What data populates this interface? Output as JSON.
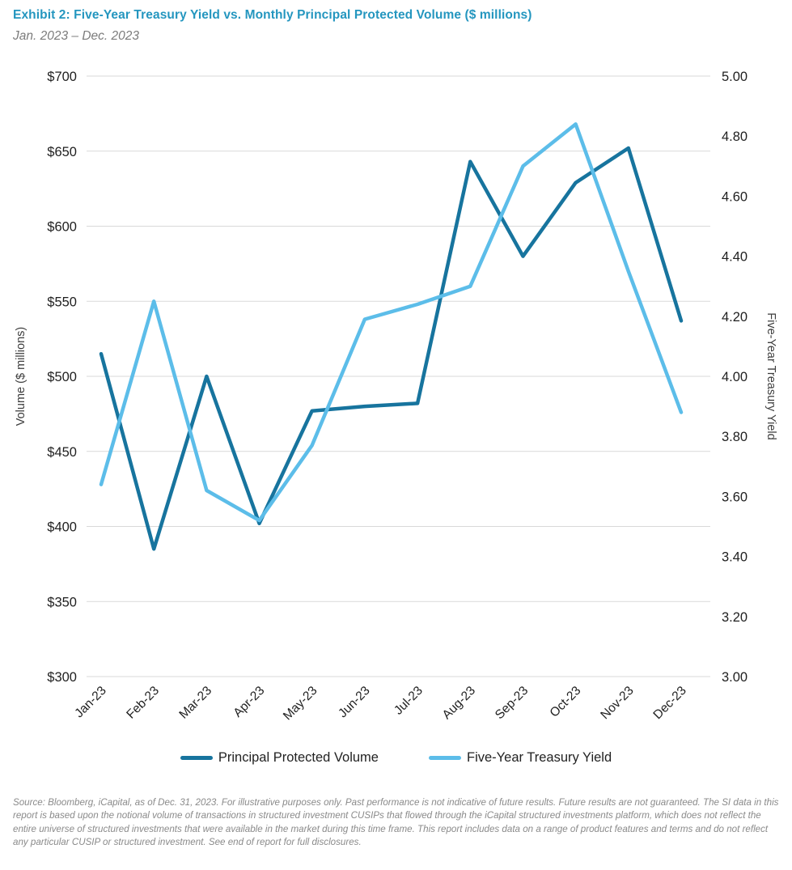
{
  "header": {
    "title": "Exhibit 2: Five-Year Treasury Yield vs. Monthly Principal Protected Volume ($ millions)",
    "subtitle": "Jan. 2023 – Dec. 2023"
  },
  "chart_data": {
    "type": "line",
    "categories": [
      "Jan-23",
      "Feb-23",
      "Mar-23",
      "Apr-23",
      "May-23",
      "Jun-23",
      "Jul-23",
      "Aug-23",
      "Sep-23",
      "Oct-23",
      "Nov-23",
      "Dec-23"
    ],
    "series": [
      {
        "name": "Principal Protected Volume",
        "axis": "left",
        "color": "#17749e",
        "values": [
          515,
          385,
          500,
          402,
          477,
          480,
          482,
          643,
          580,
          629,
          652,
          537
        ]
      },
      {
        "name": "Five-Year Treasury Yield",
        "axis": "right",
        "color": "#5cbde9",
        "values": [
          3.64,
          4.25,
          3.62,
          3.52,
          3.77,
          4.19,
          4.24,
          4.3,
          4.7,
          4.84,
          4.35,
          3.88
        ]
      }
    ],
    "left_axis": {
      "label": "Volume ($ millions)",
      "min": 300,
      "max": 700,
      "step": 50,
      "tick_prefix": "$",
      "ticks": [
        "$700",
        "$650",
        "$600",
        "$550",
        "$500",
        "$450",
        "$400",
        "$350",
        "$300"
      ]
    },
    "right_axis": {
      "label": "Five-Year Treasury Yield",
      "min": 3.0,
      "max": 5.0,
      "step": 0.2,
      "ticks": [
        "5.00",
        "4.80",
        "4.60",
        "4.40",
        "4.20",
        "4.00",
        "3.80",
        "3.60",
        "3.40",
        "3.20",
        "3.00"
      ]
    },
    "grid": true,
    "legend_position": "bottom"
  },
  "footer": {
    "source": "Source: Bloomberg, iCapital, as of Dec. 31, 2023. For illustrative purposes only. Past performance is not indicative of future results. Future results are not guaranteed. The SI data in this report is based upon the notional volume of transactions in structured investment CUSIPs that flowed through the iCapital structured investments platform, which does not reflect the entire universe of structured investments that were available in the market during this time frame. This report includes data on a range of product features and terms and do not reflect any particular CUSIP or structured investment. See end of report for full disclosures."
  },
  "colors": {
    "title": "#2496bf",
    "grid": "#d9d9d9",
    "tick": "#1f1f1f",
    "axis_title": "#3d3d3d",
    "volume_line": "#17749e",
    "yield_line": "#5cbde9"
  }
}
